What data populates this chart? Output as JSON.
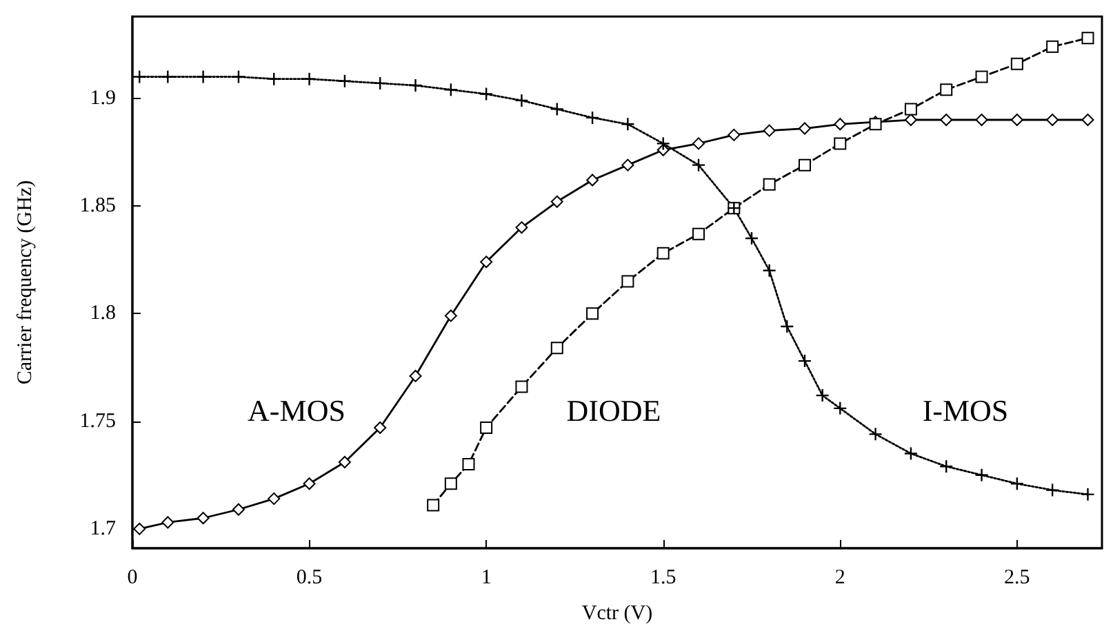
{
  "chart_data": {
    "type": "line",
    "xlabel": "Vctr (V)",
    "ylabel": "Carrier frequency (GHz)",
    "xlim": [
      0,
      2.74
    ],
    "ylim": [
      1.691,
      1.938
    ],
    "xticks": [
      0,
      0.5,
      1,
      1.5,
      2,
      2.5
    ],
    "yticks": [
      1.7,
      1.75,
      1.8,
      1.85,
      1.9
    ],
    "grid": false,
    "legend": false,
    "series": [
      {
        "name": "A-MOS",
        "color": "#000000",
        "marker": "diamond",
        "line_style": "solid",
        "x": [
          0.02,
          0.1,
          0.2,
          0.3,
          0.4,
          0.5,
          0.6,
          0.7,
          0.8,
          0.9,
          1.0,
          1.1,
          1.2,
          1.3,
          1.4,
          1.5,
          1.6,
          1.7,
          1.8,
          1.9,
          2.0,
          2.1,
          2.2,
          2.3,
          2.4,
          2.5,
          2.6,
          2.7
        ],
        "values": [
          1.7,
          1.703,
          1.705,
          1.709,
          1.714,
          1.721,
          1.731,
          1.747,
          1.771,
          1.799,
          1.824,
          1.84,
          1.852,
          1.862,
          1.869,
          1.876,
          1.879,
          1.883,
          1.885,
          1.886,
          1.888,
          1.889,
          1.89,
          1.89,
          1.89,
          1.89,
          1.89,
          1.89
        ]
      },
      {
        "name": "DIODE",
        "color": "#000000",
        "marker": "square",
        "line_style": "dashed",
        "x": [
          0.85,
          0.9,
          0.95,
          1.0,
          1.1,
          1.2,
          1.3,
          1.4,
          1.5,
          1.6,
          1.7,
          1.8,
          1.9,
          2.0,
          2.1,
          2.2,
          2.3,
          2.4,
          2.5,
          2.6,
          2.7
        ],
        "values": [
          1.711,
          1.721,
          1.73,
          1.747,
          1.766,
          1.784,
          1.8,
          1.815,
          1.828,
          1.837,
          1.849,
          1.86,
          1.869,
          1.879,
          1.888,
          1.895,
          1.904,
          1.91,
          1.916,
          1.924,
          1.928
        ]
      },
      {
        "name": "I-MOS",
        "color": "#000000",
        "marker": "cross",
        "line_style": "dotted",
        "x": [
          0.02,
          0.1,
          0.2,
          0.3,
          0.4,
          0.5,
          0.6,
          0.7,
          0.8,
          0.9,
          1.0,
          1.1,
          1.2,
          1.3,
          1.4,
          1.5,
          1.6,
          1.7,
          1.75,
          1.8,
          1.85,
          1.9,
          1.95,
          2.0,
          2.1,
          2.2,
          2.3,
          2.4,
          2.5,
          2.6,
          2.7
        ],
        "values": [
          1.91,
          1.91,
          1.91,
          1.91,
          1.909,
          1.909,
          1.908,
          1.907,
          1.906,
          1.904,
          1.902,
          1.899,
          1.895,
          1.891,
          1.888,
          1.879,
          1.869,
          1.849,
          1.835,
          1.82,
          1.794,
          1.778,
          1.762,
          1.756,
          1.744,
          1.735,
          1.729,
          1.725,
          1.721,
          1.718,
          1.716
        ]
      }
    ]
  }
}
